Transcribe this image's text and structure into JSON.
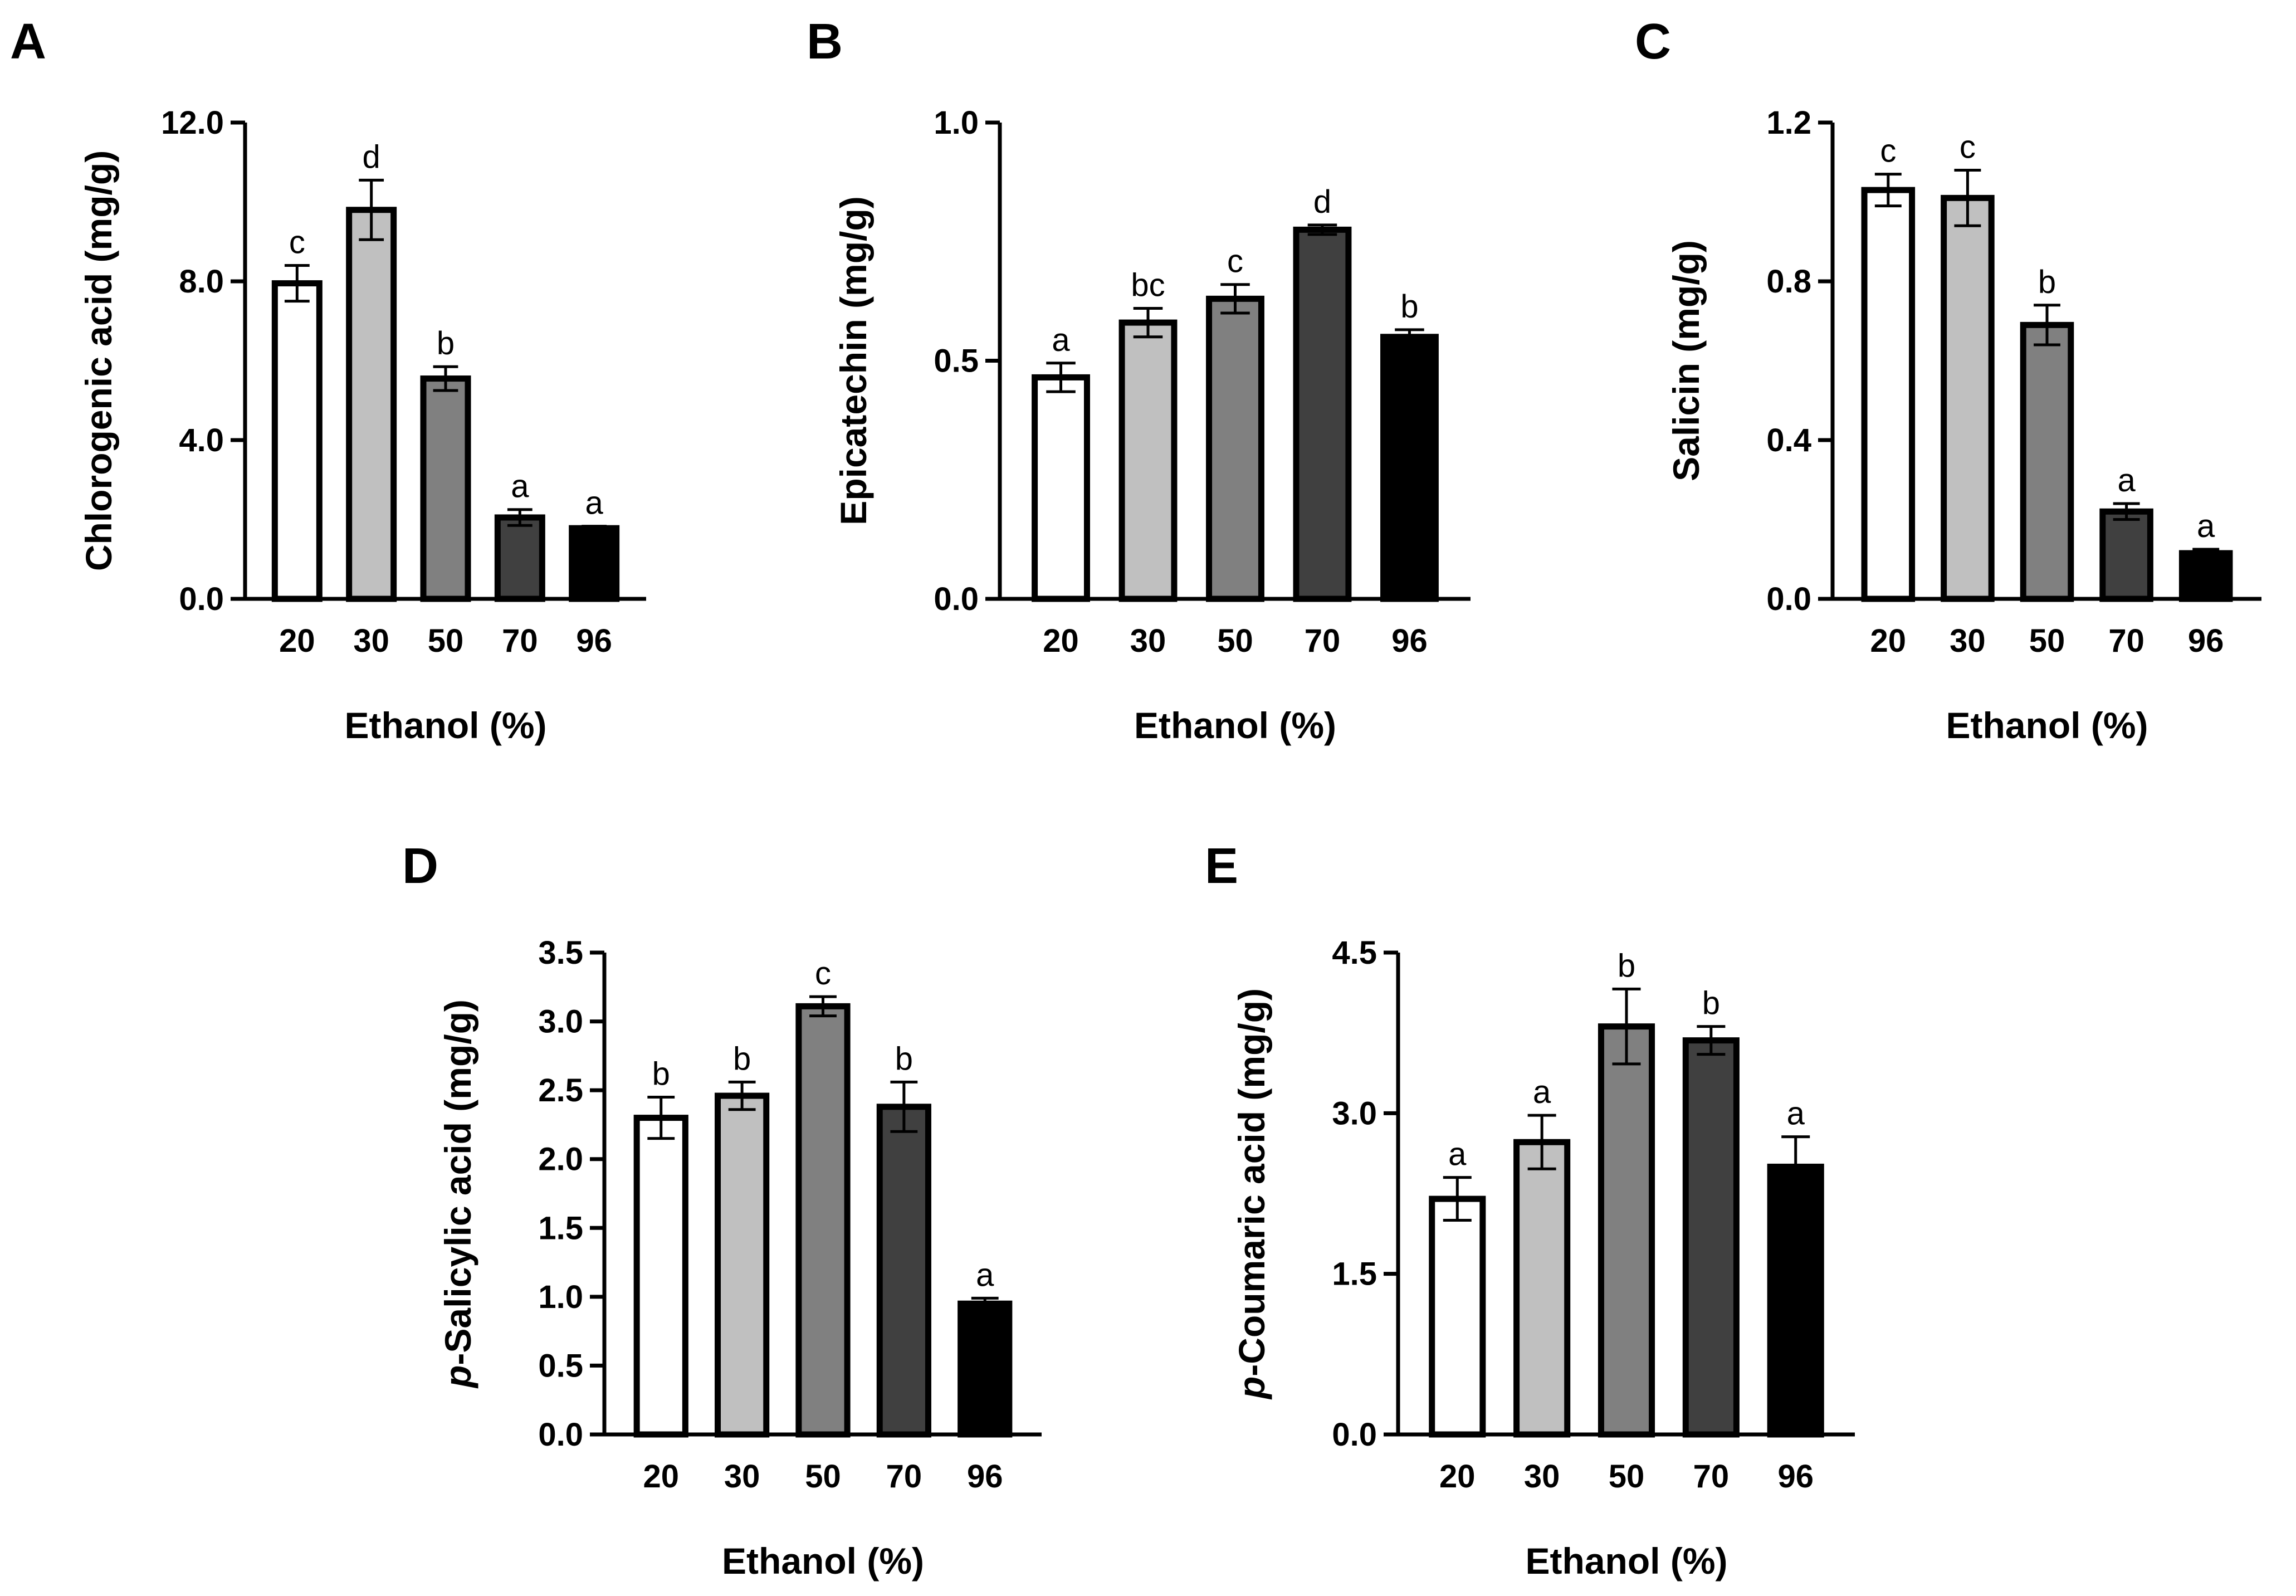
{
  "figure_colors": {
    "20": "#ffffff",
    "30": "#c0c0c0",
    "50": "#808080",
    "70": "#404040",
    "96": "#000000"
  },
  "chart_data": [
    {
      "panel": "A",
      "type": "bar",
      "categories": [
        "20",
        "30",
        "50",
        "70",
        "96"
      ],
      "values": [
        7.95,
        9.8,
        5.55,
        2.05,
        1.78
      ],
      "errors": [
        0.45,
        0.75,
        0.3,
        0.2,
        0.05
      ],
      "significance": [
        "c",
        "d",
        "b",
        "a",
        "a"
      ],
      "xlabel": "Ethanol (%)",
      "ylabel_prefix": "",
      "ylabel": "Chlorogenic acid (mg/g)",
      "ylim": [
        0,
        12
      ],
      "yticks": [
        "0.0",
        "4.0",
        "8.0",
        "12.0"
      ]
    },
    {
      "panel": "B",
      "type": "bar",
      "categories": [
        "20",
        "30",
        "50",
        "70",
        "96"
      ],
      "values": [
        0.465,
        0.58,
        0.63,
        0.775,
        0.55
      ],
      "errors": [
        0.03,
        0.03,
        0.03,
        0.01,
        0.015
      ],
      "significance": [
        "a",
        "bc",
        "c",
        "d",
        "b"
      ],
      "xlabel": "Ethanol (%)",
      "ylabel_prefix": "",
      "ylabel": "Epicatechin (mg/g)",
      "ylim": [
        0,
        1
      ],
      "yticks": [
        "0.0",
        "0.5",
        "1.0"
      ]
    },
    {
      "panel": "C",
      "type": "bar",
      "categories": [
        "20",
        "30",
        "50",
        "70",
        "96"
      ],
      "values": [
        1.03,
        1.01,
        0.69,
        0.22,
        0.115
      ],
      "errors": [
        0.04,
        0.07,
        0.05,
        0.02,
        0.01
      ],
      "significance": [
        "c",
        "c",
        "b",
        "a",
        "a"
      ],
      "xlabel": "Ethanol (%)",
      "ylabel_prefix": "",
      "ylabel": "Salicin (mg/g)",
      "ylim": [
        0,
        1.2
      ],
      "yticks": [
        "0.0",
        "0.4",
        "0.8",
        "1.2"
      ]
    },
    {
      "panel": "D",
      "type": "bar",
      "categories": [
        "20",
        "30",
        "50",
        "70",
        "96"
      ],
      "values": [
        2.3,
        2.46,
        3.11,
        2.38,
        0.95
      ],
      "errors": [
        0.15,
        0.1,
        0.07,
        0.18,
        0.04
      ],
      "significance": [
        "b",
        "b",
        "c",
        "b",
        "a"
      ],
      "xlabel": "Ethanol (%)",
      "ylabel_prefix": "p",
      "ylabel": "-Salicylic acid (mg/g)",
      "ylim": [
        0,
        3.5
      ],
      "yticks": [
        "0.0",
        "0.5",
        "1.0",
        "1.5",
        "2.0",
        "2.5",
        "3.0",
        "3.5"
      ]
    },
    {
      "panel": "E",
      "type": "bar",
      "categories": [
        "20",
        "30",
        "50",
        "70",
        "96"
      ],
      "values": [
        2.2,
        2.73,
        3.81,
        3.68,
        2.5
      ],
      "errors": [
        0.2,
        0.25,
        0.35,
        0.13,
        0.28
      ],
      "significance": [
        "a",
        "a",
        "b",
        "b",
        "a"
      ],
      "xlabel": "Ethanol (%)",
      "ylabel_prefix": "p",
      "ylabel": "-Coumaric acid (mg/g)",
      "ylim": [
        0,
        4.5
      ],
      "yticks": [
        "0.0",
        "1.5",
        "3.0",
        "4.5"
      ]
    }
  ]
}
